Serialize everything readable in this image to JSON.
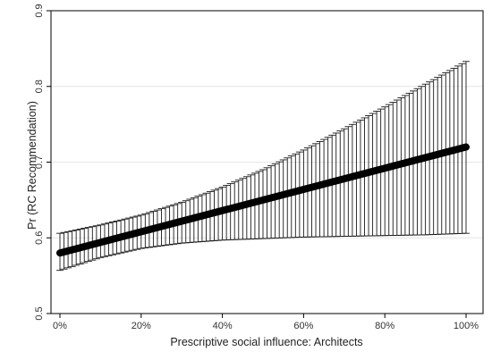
{
  "chart_data": {
    "type": "line",
    "title": "",
    "xlabel": "Prescriptive social influence: Architects",
    "ylabel": "Pr (RC Recommendation)",
    "xlim": [
      0,
      100
    ],
    "ylim": [
      0.5,
      0.9
    ],
    "x_ticks": [
      0,
      20,
      40,
      60,
      80,
      100
    ],
    "x_tick_labels": [
      "0%",
      "20%",
      "40%",
      "60%",
      "80%",
      "100%"
    ],
    "y_ticks": [
      0.5,
      0.6,
      0.7,
      0.8,
      0.9
    ],
    "y_tick_labels": [
      "0.5",
      "0.6",
      "0.7",
      "0.8",
      "0.9"
    ],
    "grid": true,
    "x_step": 1,
    "estimate_start": 0.58,
    "estimate_end": 0.72,
    "ci_upper": [
      {
        "x": 0,
        "y": 0.606
      },
      {
        "x": 10,
        "y": 0.617
      },
      {
        "x": 20,
        "y": 0.63
      },
      {
        "x": 30,
        "y": 0.647
      },
      {
        "x": 40,
        "y": 0.667
      },
      {
        "x": 50,
        "y": 0.69
      },
      {
        "x": 60,
        "y": 0.716
      },
      {
        "x": 70,
        "y": 0.744
      },
      {
        "x": 80,
        "y": 0.773
      },
      {
        "x": 90,
        "y": 0.803
      },
      {
        "x": 100,
        "y": 0.833
      }
    ],
    "ci_lower": [
      {
        "x": 0,
        "y": 0.557
      },
      {
        "x": 10,
        "y": 0.574
      },
      {
        "x": 20,
        "y": 0.586
      },
      {
        "x": 30,
        "y": 0.593
      },
      {
        "x": 40,
        "y": 0.597
      },
      {
        "x": 50,
        "y": 0.599
      },
      {
        "x": 60,
        "y": 0.601
      },
      {
        "x": 70,
        "y": 0.602
      },
      {
        "x": 80,
        "y": 0.603
      },
      {
        "x": 90,
        "y": 0.604
      },
      {
        "x": 100,
        "y": 0.606
      }
    ],
    "colors": {
      "estimate": "#000000",
      "ci": "#1a1a1a",
      "grid": "#e6e6e6",
      "frame": "#000000"
    }
  }
}
